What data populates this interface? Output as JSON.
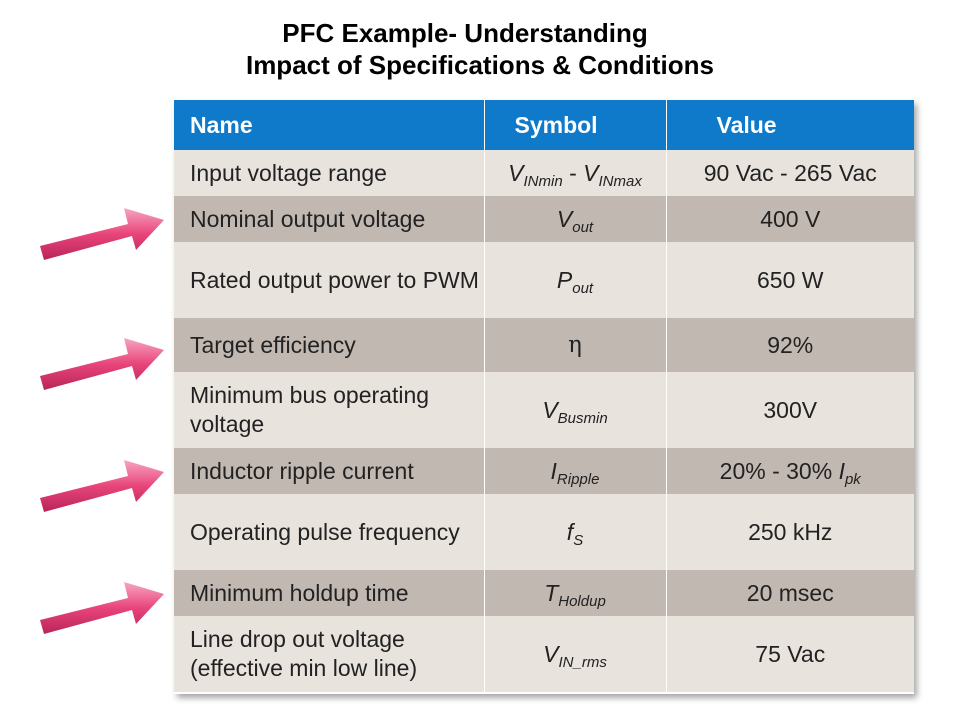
{
  "title": {
    "line1": "PFC Example- Understanding",
    "line2": "Impact of Specifications & Conditions"
  },
  "table": {
    "headers": {
      "name": "Name",
      "symbol": "Symbol",
      "value": "Value"
    },
    "rows": [
      {
        "name": "Input voltage range",
        "symbol_main": "V",
        "symbol_sub": "INmin",
        "symbol_mid": " - ",
        "symbol_main2": "V",
        "symbol_sub2": "INmax",
        "value": "90 Vac - 265 Vac"
      },
      {
        "name": "Nominal output voltage",
        "symbol_main": "V",
        "symbol_sub": "out",
        "value": "400 V"
      },
      {
        "name": "Rated output power to PWM",
        "symbol_main": "P",
        "symbol_sub": "out",
        "value": "650 W"
      },
      {
        "name": "Target efficiency",
        "symbol_main": "η",
        "value": "92%"
      },
      {
        "name": "Minimum bus operating voltage",
        "symbol_main": "V",
        "symbol_sub": "Busmin",
        "value": "300V"
      },
      {
        "name": "Inductor ripple current",
        "symbol_main": "I",
        "symbol_sub": "Ripple",
        "value": "20% - 30% ",
        "value_main": "I",
        "value_sub": "pk"
      },
      {
        "name": "Operating pulse frequency",
        "symbol_main": "f",
        "symbol_sub": "S",
        "value": "250 kHz"
      },
      {
        "name": "Minimum holdup time",
        "symbol_main": "T",
        "symbol_sub": "Holdup",
        "value": "20 msec"
      },
      {
        "name": "Line drop out voltage (effective min low line)",
        "symbol_main": "V",
        "symbol_sub": "IN_rms",
        "value": "75 Vac"
      }
    ]
  },
  "colors": {
    "header_bg": "#0f7ac9",
    "row_light": "#e9e3de",
    "row_dark": "#c2b8b2",
    "arrow": "#e8457a"
  },
  "arrows": {
    "icon": "pink-arrow-icon",
    "count": 4
  }
}
